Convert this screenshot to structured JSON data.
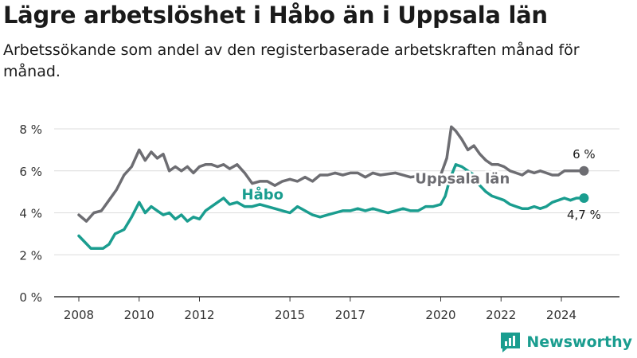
{
  "title": "Lägre arbetslöshet i Håbo än i Uppsala län",
  "subtitle": "Arbetssökande som andel av den registerbaserade arbetskraften månad för månad.",
  "brand": {
    "name": "Newsworthy",
    "logo_icon": "newsworthy-logo-icon",
    "color": "#1a9d8f"
  },
  "chart_data": {
    "type": "line",
    "title": "Lägre arbetslöshet i Håbo än i Uppsala län",
    "subtitle": "Arbetssökande som andel av den registerbaserade arbetskraften månad för månad.",
    "xlabel": "",
    "ylabel": "",
    "xlim": [
      2008,
      2025.75
    ],
    "ylim": [
      0,
      8
    ],
    "y_ticks": [
      0,
      2,
      4,
      6,
      8
    ],
    "y_tick_labels": [
      "0 %",
      "2 %",
      "4 %",
      "6 %",
      "8 %"
    ],
    "x_ticks": [
      2008,
      2010,
      2012,
      2015,
      2017,
      2020,
      2022,
      2024
    ],
    "x_tick_labels": [
      "2008",
      "2010",
      "2012",
      "2015",
      "2017",
      "2020",
      "2022",
      "2024"
    ],
    "grid": "horizontal",
    "series": [
      {
        "name": "Uppsala län",
        "color": "#6d6d72",
        "end_label": "6 %",
        "x": [
          2008.0,
          2008.25,
          2008.5,
          2008.75,
          2009.0,
          2009.25,
          2009.5,
          2009.75,
          2010.0,
          2010.2,
          2010.4,
          2010.6,
          2010.8,
          2011.0,
          2011.2,
          2011.4,
          2011.6,
          2011.8,
          2012.0,
          2012.2,
          2012.4,
          2012.6,
          2012.8,
          2013.0,
          2013.25,
          2013.5,
          2013.75,
          2014.0,
          2014.25,
          2014.5,
          2014.75,
          2015.0,
          2015.25,
          2015.5,
          2015.75,
          2016.0,
          2016.25,
          2016.5,
          2016.75,
          2017.0,
          2017.25,
          2017.5,
          2017.75,
          2018.0,
          2018.5,
          2019.0,
          2019.5,
          2019.75,
          2020.0,
          2020.2,
          2020.35,
          2020.5,
          2020.7,
          2020.9,
          2021.1,
          2021.3,
          2021.5,
          2021.7,
          2021.9,
          2022.1,
          2022.3,
          2022.5,
          2022.7,
          2022.9,
          2023.1,
          2023.3,
          2023.5,
          2023.7,
          2023.9,
          2024.1,
          2024.3,
          2024.5,
          2024.75
        ],
        "values": [
          3.9,
          3.6,
          4.0,
          4.1,
          4.6,
          5.1,
          5.8,
          6.2,
          7.0,
          6.5,
          6.9,
          6.6,
          6.8,
          6.0,
          6.2,
          6.0,
          6.2,
          5.9,
          6.2,
          6.3,
          6.3,
          6.2,
          6.3,
          6.1,
          6.3,
          5.9,
          5.4,
          5.5,
          5.5,
          5.3,
          5.5,
          5.6,
          5.5,
          5.7,
          5.5,
          5.8,
          5.8,
          5.9,
          5.8,
          5.9,
          5.9,
          5.7,
          5.9,
          5.8,
          5.9,
          5.7,
          5.8,
          5.6,
          5.8,
          6.6,
          8.1,
          7.9,
          7.5,
          7.0,
          7.2,
          6.8,
          6.5,
          6.3,
          6.3,
          6.2,
          6.0,
          5.9,
          5.8,
          6.0,
          5.9,
          6.0,
          5.9,
          5.8,
          5.8,
          6.0,
          6.0,
          6.0,
          6.0
        ]
      },
      {
        "name": "Håbo",
        "color": "#1a9d8f",
        "end_label": "4,7 %",
        "x": [
          2008.0,
          2008.2,
          2008.4,
          2008.6,
          2008.8,
          2009.0,
          2009.2,
          2009.5,
          2009.75,
          2010.0,
          2010.2,
          2010.4,
          2010.6,
          2010.8,
          2011.0,
          2011.2,
          2011.4,
          2011.6,
          2011.8,
          2012.0,
          2012.2,
          2012.4,
          2012.6,
          2012.8,
          2013.0,
          2013.25,
          2013.5,
          2013.75,
          2014.0,
          2014.25,
          2014.5,
          2014.75,
          2015.0,
          2015.25,
          2015.5,
          2015.75,
          2016.0,
          2016.25,
          2016.5,
          2016.75,
          2017.0,
          2017.25,
          2017.5,
          2017.75,
          2018.0,
          2018.25,
          2018.5,
          2018.75,
          2019.0,
          2019.25,
          2019.5,
          2019.75,
          2020.0,
          2020.15,
          2020.3,
          2020.5,
          2020.7,
          2020.9,
          2021.1,
          2021.3,
          2021.5,
          2021.7,
          2021.9,
          2022.1,
          2022.3,
          2022.5,
          2022.7,
          2022.9,
          2023.1,
          2023.3,
          2023.5,
          2023.7,
          2023.9,
          2024.1,
          2024.3,
          2024.5,
          2024.75
        ],
        "values": [
          2.9,
          2.6,
          2.3,
          2.3,
          2.3,
          2.5,
          3.0,
          3.2,
          3.8,
          4.5,
          4.0,
          4.3,
          4.1,
          3.9,
          4.0,
          3.7,
          3.9,
          3.6,
          3.8,
          3.7,
          4.1,
          4.3,
          4.5,
          4.7,
          4.4,
          4.5,
          4.3,
          4.3,
          4.4,
          4.3,
          4.2,
          4.1,
          4.0,
          4.3,
          4.1,
          3.9,
          3.8,
          3.9,
          4.0,
          4.1,
          4.1,
          4.2,
          4.1,
          4.2,
          4.1,
          4.0,
          4.1,
          4.2,
          4.1,
          4.1,
          4.3,
          4.3,
          4.4,
          4.8,
          5.6,
          6.3,
          6.2,
          6.0,
          5.8,
          5.3,
          5.0,
          4.8,
          4.7,
          4.6,
          4.4,
          4.3,
          4.2,
          4.2,
          4.3,
          4.2,
          4.3,
          4.5,
          4.6,
          4.7,
          4.6,
          4.7,
          4.7
        ]
      }
    ],
    "series_labels": [
      {
        "series": "Uppsala län",
        "text": "Uppsala län",
        "x": 2019.15,
        "y": 5.4
      },
      {
        "series": "Håbo",
        "text": "Håbo",
        "x": 2013.4,
        "y": 4.65
      }
    ]
  }
}
